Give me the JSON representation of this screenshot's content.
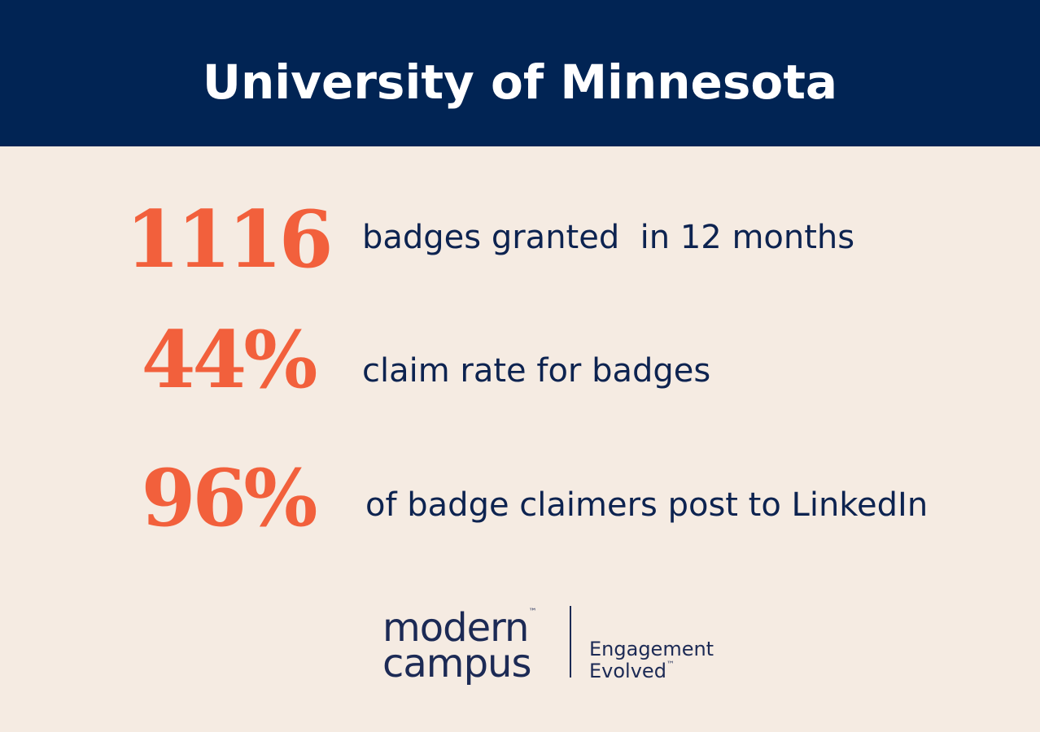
{
  "header": {
    "title": "University of Minnesota"
  },
  "stats": [
    {
      "number": "1116",
      "text": "badges granted  in 12 months"
    },
    {
      "number": "44%",
      "text": "claim rate for badges"
    },
    {
      "number": "96%",
      "text": "of badge claimers post to LinkedIn"
    }
  ],
  "logo": {
    "line1": "modern",
    "line2": "campus",
    "mark": "™",
    "tagline1": "Engagement",
    "tagline2": "Evolved",
    "tagline_mark": "™"
  }
}
